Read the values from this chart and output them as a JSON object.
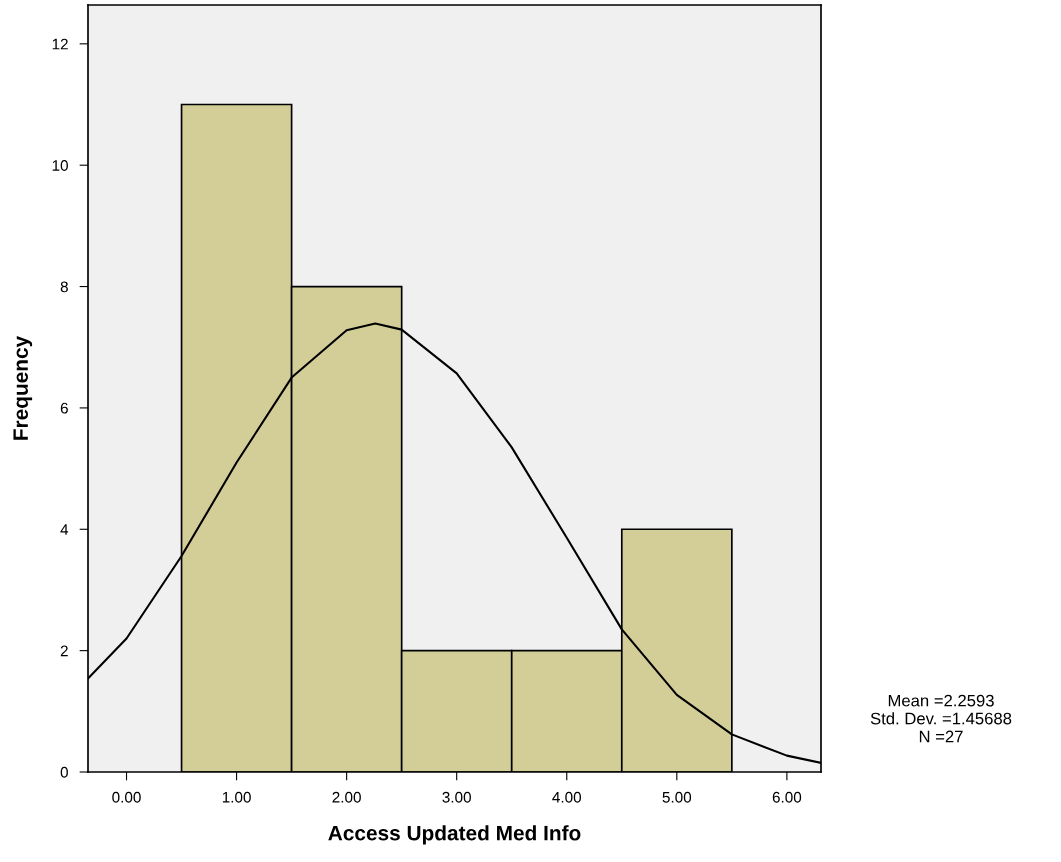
{
  "chart_data": {
    "type": "histogram",
    "xlabel": "Access Updated Med Info",
    "ylabel": "Frequency",
    "bins": [
      0.5,
      1.5,
      2.5,
      3.5,
      4.5,
      5.5
    ],
    "values": [
      11,
      8,
      2,
      2,
      4
    ],
    "color": "#d3ce97",
    "series": [
      {
        "type": "line",
        "color": "#000000",
        "x": [
          -0.35,
          0.0,
          0.5,
          1.0,
          1.5,
          2.0,
          2.26,
          2.5,
          3.0,
          3.5,
          4.0,
          4.5,
          5.0,
          5.5,
          6.0,
          6.31
        ],
        "values": [
          1.54,
          2.2,
          3.56,
          5.1,
          6.5,
          7.28,
          7.39,
          7.29,
          6.57,
          5.35,
          3.86,
          2.35,
          1.27,
          0.62,
          0.27,
          0.15
        ]
      }
    ],
    "xlim": [
      -0.35,
      6.31
    ],
    "ylim": [
      0,
      12.64
    ],
    "xticks": [
      {
        "value": 0,
        "label": "0.00"
      },
      {
        "value": 1,
        "label": "1.00"
      },
      {
        "value": 2,
        "label": "2.00"
      },
      {
        "value": 3,
        "label": "3.00"
      },
      {
        "value": 4,
        "label": "4.00"
      },
      {
        "value": 5,
        "label": "5.00"
      },
      {
        "value": 6,
        "label": "6.00"
      }
    ],
    "yticks": [
      0,
      2,
      4,
      6,
      8,
      10,
      12
    ],
    "annotations": [
      "Mean =2.2593\nStd. Dev. =1.45688\nN =27"
    ],
    "line_style": "solid",
    "marker": "none",
    "grid": false,
    "legend": false
  }
}
